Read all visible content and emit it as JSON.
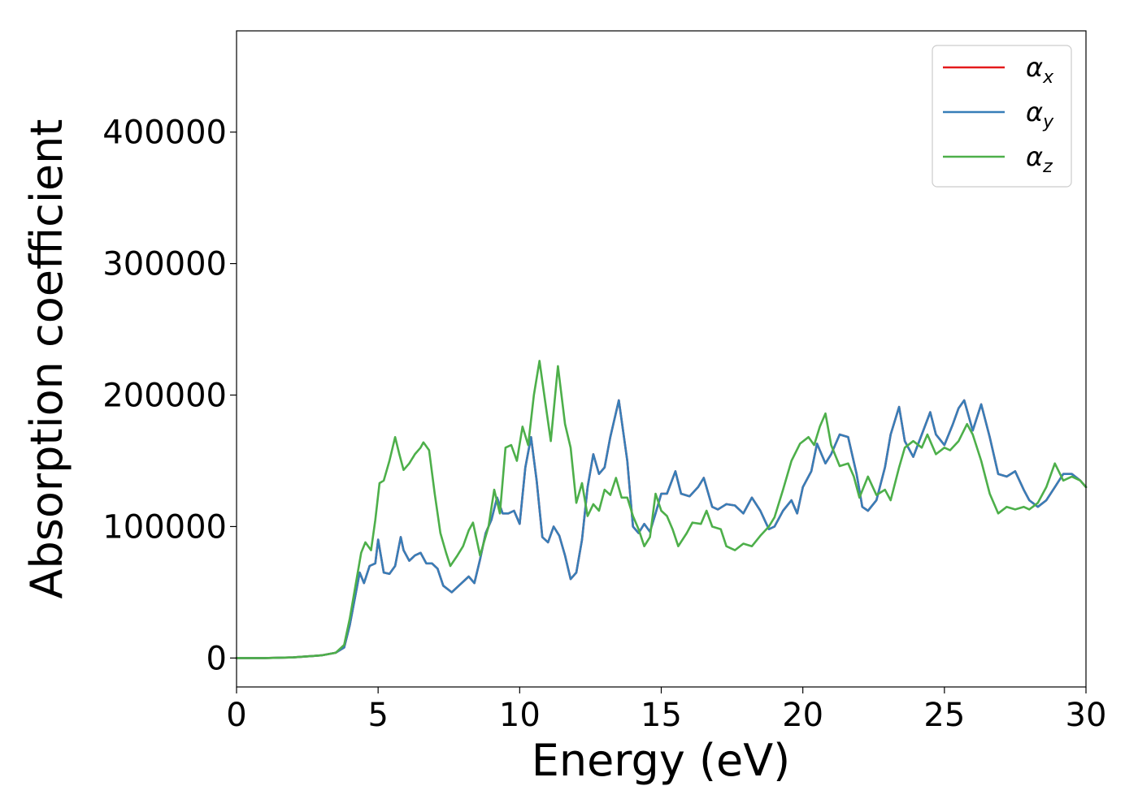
{
  "chart_data": {
    "type": "line",
    "title": "",
    "xlabel": "Energy (eV)",
    "ylabel": "Absorption coefficient",
    "xlim": [
      0,
      30
    ],
    "ylim": [
      -22000,
      477000
    ],
    "xticks": [
      0,
      5,
      10,
      15,
      20,
      25,
      30
    ],
    "xtick_labels": [
      "0",
      "5",
      "10",
      "15",
      "20",
      "25",
      "30"
    ],
    "yticks": [
      0,
      100000,
      200000,
      300000,
      400000
    ],
    "ytick_labels": [
      "0",
      "100000",
      "200000",
      "300000",
      "400000"
    ],
    "grid": false,
    "legend_position": "top-right",
    "series": [
      {
        "name": "αx",
        "symbol": "α",
        "subscript": "x",
        "color": "#e41a1c",
        "x": [
          0,
          1,
          2,
          3,
          3.5,
          3.8,
          4.0,
          4.2,
          4.35,
          4.5,
          4.7,
          4.9,
          5.0,
          5.2,
          5.4,
          5.6,
          5.8,
          5.9,
          6.1,
          6.3,
          6.5,
          6.7,
          6.9,
          7.1,
          7.3,
          7.6,
          7.9,
          8.2,
          8.4,
          8.6,
          8.8,
          9.0,
          9.2,
          9.4,
          9.6,
          9.8,
          10.0,
          10.2,
          10.4,
          10.6,
          10.8,
          11.0,
          11.2,
          11.4,
          11.6,
          11.8,
          12.0,
          12.2,
          12.4,
          12.6,
          12.8,
          13.0,
          13.2,
          13.5,
          13.8,
          14.0,
          14.2,
          14.4,
          14.6,
          14.8,
          15.0,
          15.2,
          15.5,
          15.7,
          16.0,
          16.3,
          16.5,
          16.8,
          17.0,
          17.3,
          17.6,
          17.9,
          18.2,
          18.5,
          18.8,
          19.0,
          19.3,
          19.6,
          19.8,
          20.0,
          20.3,
          20.5,
          20.8,
          21.0,
          21.3,
          21.6,
          21.9,
          22.1,
          22.3,
          22.6,
          22.9,
          23.1,
          23.4,
          23.6,
          23.9,
          24.2,
          24.5,
          24.7,
          25.0,
          25.3,
          25.5,
          25.7,
          26.0,
          26.3,
          26.6,
          26.9,
          27.2,
          27.5,
          27.8,
          28.0,
          28.3,
          28.6,
          28.9,
          29.2,
          29.5,
          29.8,
          30.0
        ],
        "y": [
          0,
          0,
          500,
          2000,
          4000,
          8000,
          25000,
          48000,
          65000,
          57000,
          70000,
          72000,
          90000,
          65000,
          64000,
          70000,
          92000,
          82000,
          74000,
          78000,
          80000,
          72000,
          72000,
          68000,
          55000,
          50000,
          56000,
          62000,
          57000,
          75000,
          95000,
          105000,
          122000,
          110000,
          110000,
          112000,
          102000,
          145000,
          168000,
          135000,
          92000,
          88000,
          100000,
          93000,
          78000,
          60000,
          65000,
          90000,
          130000,
          155000,
          140000,
          145000,
          168000,
          196000,
          150000,
          100000,
          95000,
          102000,
          96000,
          110000,
          125000,
          125000,
          142000,
          125000,
          123000,
          130000,
          137000,
          115000,
          113000,
          117000,
          116000,
          110000,
          122000,
          112000,
          98000,
          100000,
          112000,
          120000,
          110000,
          130000,
          142000,
          163000,
          148000,
          155000,
          170000,
          168000,
          140000,
          115000,
          112000,
          120000,
          145000,
          170000,
          191000,
          165000,
          153000,
          170000,
          187000,
          170000,
          162000,
          178000,
          190000,
          196000,
          173000,
          193000,
          168000,
          140000,
          138000,
          142000,
          128000,
          120000,
          115000,
          120000,
          130000,
          140000,
          140000,
          135000,
          130000
        ]
      },
      {
        "name": "αy",
        "symbol": "α",
        "subscript": "y",
        "color": "#377eb8",
        "x": [
          0,
          1,
          2,
          3,
          3.5,
          3.8,
          4.0,
          4.2,
          4.35,
          4.5,
          4.7,
          4.9,
          5.0,
          5.2,
          5.4,
          5.6,
          5.8,
          5.9,
          6.1,
          6.3,
          6.5,
          6.7,
          6.9,
          7.1,
          7.3,
          7.6,
          7.9,
          8.2,
          8.4,
          8.6,
          8.8,
          9.0,
          9.2,
          9.4,
          9.6,
          9.8,
          10.0,
          10.2,
          10.4,
          10.6,
          10.8,
          11.0,
          11.2,
          11.4,
          11.6,
          11.8,
          12.0,
          12.2,
          12.4,
          12.6,
          12.8,
          13.0,
          13.2,
          13.5,
          13.8,
          14.0,
          14.2,
          14.4,
          14.6,
          14.8,
          15.0,
          15.2,
          15.5,
          15.7,
          16.0,
          16.3,
          16.5,
          16.8,
          17.0,
          17.3,
          17.6,
          17.9,
          18.2,
          18.5,
          18.8,
          19.0,
          19.3,
          19.6,
          19.8,
          20.0,
          20.3,
          20.5,
          20.8,
          21.0,
          21.3,
          21.6,
          21.9,
          22.1,
          22.3,
          22.6,
          22.9,
          23.1,
          23.4,
          23.6,
          23.9,
          24.2,
          24.5,
          24.7,
          25.0,
          25.3,
          25.5,
          25.7,
          26.0,
          26.3,
          26.6,
          26.9,
          27.2,
          27.5,
          27.8,
          28.0,
          28.3,
          28.6,
          28.9,
          29.2,
          29.5,
          29.8,
          30.0
        ],
        "y": [
          0,
          0,
          500,
          2000,
          4000,
          8000,
          25000,
          48000,
          65000,
          57000,
          70000,
          72000,
          90000,
          65000,
          64000,
          70000,
          92000,
          82000,
          74000,
          78000,
          80000,
          72000,
          72000,
          68000,
          55000,
          50000,
          56000,
          62000,
          57000,
          75000,
          95000,
          105000,
          122000,
          110000,
          110000,
          112000,
          102000,
          145000,
          168000,
          135000,
          92000,
          88000,
          100000,
          93000,
          78000,
          60000,
          65000,
          90000,
          130000,
          155000,
          140000,
          145000,
          168000,
          196000,
          150000,
          100000,
          95000,
          102000,
          96000,
          110000,
          125000,
          125000,
          142000,
          125000,
          123000,
          130000,
          137000,
          115000,
          113000,
          117000,
          116000,
          110000,
          122000,
          112000,
          98000,
          100000,
          112000,
          120000,
          110000,
          130000,
          142000,
          163000,
          148000,
          155000,
          170000,
          168000,
          140000,
          115000,
          112000,
          120000,
          145000,
          170000,
          191000,
          165000,
          153000,
          170000,
          187000,
          170000,
          162000,
          178000,
          190000,
          196000,
          173000,
          193000,
          168000,
          140000,
          138000,
          142000,
          128000,
          120000,
          115000,
          120000,
          130000,
          140000,
          140000,
          135000,
          130000
        ]
      },
      {
        "name": "αz",
        "symbol": "α",
        "subscript": "z",
        "color": "#4daf4a",
        "x": [
          0,
          1,
          2,
          3,
          3.5,
          3.8,
          4.0,
          4.2,
          4.4,
          4.55,
          4.75,
          4.9,
          5.05,
          5.2,
          5.4,
          5.6,
          5.75,
          5.9,
          6.1,
          6.3,
          6.5,
          6.6,
          6.8,
          7.0,
          7.2,
          7.4,
          7.55,
          7.8,
          8.0,
          8.2,
          8.35,
          8.6,
          8.9,
          9.1,
          9.3,
          9.5,
          9.7,
          9.9,
          10.1,
          10.3,
          10.5,
          10.7,
          10.9,
          11.1,
          11.35,
          11.6,
          11.8,
          12.0,
          12.2,
          12.4,
          12.6,
          12.8,
          13.0,
          13.2,
          13.4,
          13.6,
          13.8,
          14.0,
          14.2,
          14.4,
          14.6,
          14.8,
          15.0,
          15.2,
          15.4,
          15.6,
          15.9,
          16.1,
          16.4,
          16.6,
          16.8,
          17.1,
          17.3,
          17.6,
          17.9,
          18.2,
          18.5,
          18.8,
          19.0,
          19.3,
          19.6,
          19.9,
          20.2,
          20.4,
          20.6,
          20.8,
          21.0,
          21.3,
          21.6,
          21.8,
          22.0,
          22.3,
          22.6,
          22.9,
          23.1,
          23.4,
          23.6,
          23.9,
          24.2,
          24.4,
          24.7,
          25.0,
          25.2,
          25.5,
          25.8,
          26.0,
          26.3,
          26.6,
          26.9,
          27.2,
          27.5,
          27.8,
          28.0,
          28.3,
          28.6,
          28.9,
          29.2,
          29.5,
          29.8,
          30.0
        ],
        "y": [
          0,
          0,
          500,
          2000,
          4000,
          10000,
          30000,
          55000,
          80000,
          88000,
          82000,
          105000,
          133000,
          135000,
          150000,
          168000,
          155000,
          143000,
          148000,
          155000,
          160000,
          164000,
          158000,
          125000,
          95000,
          80000,
          70000,
          78000,
          85000,
          97000,
          103000,
          78000,
          100000,
          128000,
          110000,
          160000,
          162000,
          150000,
          176000,
          162000,
          200000,
          226000,
          195000,
          165000,
          222000,
          178000,
          160000,
          118000,
          133000,
          108000,
          117000,
          112000,
          128000,
          124000,
          137000,
          122000,
          122000,
          108000,
          98000,
          85000,
          92000,
          125000,
          112000,
          108000,
          98000,
          85000,
          95000,
          103000,
          102000,
          112000,
          100000,
          98000,
          85000,
          82000,
          87000,
          85000,
          93000,
          100000,
          107000,
          128000,
          150000,
          163000,
          168000,
          162000,
          176000,
          186000,
          162000,
          146000,
          148000,
          138000,
          122000,
          138000,
          124000,
          128000,
          120000,
          145000,
          160000,
          165000,
          160000,
          170000,
          155000,
          160000,
          158000,
          165000,
          178000,
          170000,
          150000,
          125000,
          110000,
          115000,
          113000,
          115000,
          113000,
          118000,
          130000,
          148000,
          135000,
          138000,
          135000,
          130000
        ]
      }
    ]
  }
}
